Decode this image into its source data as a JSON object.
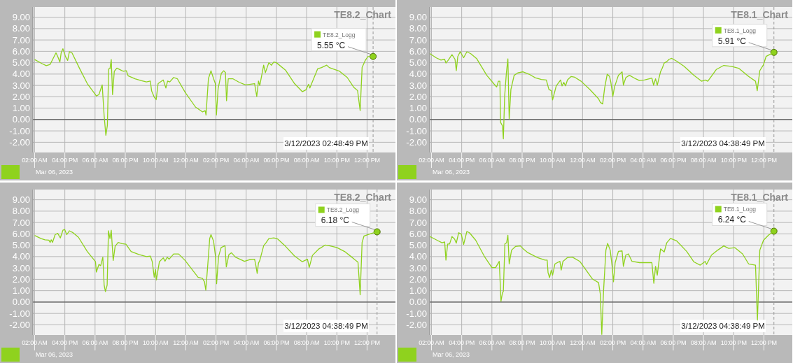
{
  "chart_data": [
    {
      "type": "line",
      "title": "TE8.2_Chart",
      "xlim": [
        "2023-03-06T01:12",
        "2023-03-13T00:30"
      ],
      "ylim": [
        -2.9,
        9.9
      ],
      "grid": true,
      "legend": "top right",
      "line_style": "solid",
      "marker": "none",
      "xticks": [
        {
          "value": "2023-03-06T02:00",
          "label": "02:00 AM"
        },
        {
          "value": "2023-03-06T16:00",
          "label": "04:00 PM"
        },
        {
          "value": "2023-03-07T06:00",
          "label": "06:00 AM"
        },
        {
          "value": "2023-03-07T20:00",
          "label": "08:00 PM"
        },
        {
          "value": "2023-03-08T10:00",
          "label": "10:00 AM"
        },
        {
          "value": "2023-03-09T00:00",
          "label": "12:00 AM"
        },
        {
          "value": "2023-03-09T14:00",
          "label": "02:00 PM"
        },
        {
          "value": "2023-03-10T04:00",
          "label": "04:00 AM"
        },
        {
          "value": "2023-03-10T18:00",
          "label": "06:00 PM"
        },
        {
          "value": "2023-03-11T08:00",
          "label": "08:00 AM"
        },
        {
          "value": "2023-03-11T22:00",
          "label": "10:00 PM"
        },
        {
          "value": "2023-03-12T12:00",
          "label": "12:00 PM"
        }
      ],
      "yticks": [
        {
          "value": -2,
          "label": "-2.00"
        },
        {
          "value": -1,
          "label": "-1.00"
        },
        {
          "value": 0,
          "label": "0.00"
        },
        {
          "value": 1,
          "label": "1.00"
        },
        {
          "value": 2,
          "label": "2.00"
        },
        {
          "value": 3,
          "label": "3.00"
        },
        {
          "value": 4,
          "label": "4.00"
        },
        {
          "value": 5,
          "label": "5.00"
        },
        {
          "value": 6,
          "label": "6.00"
        },
        {
          "value": 7,
          "label": "7.00"
        },
        {
          "value": 8,
          "label": "8.00"
        },
        {
          "value": 9,
          "label": "9.00"
        }
      ],
      "ref_lines": [
        {
          "axis": "y",
          "value": 0,
          "color": "#555555",
          "line_style": "solid"
        },
        {
          "axis": "x",
          "value": "2023-03-12T14:48",
          "color": "#999999",
          "line_style": "dashed"
        }
      ],
      "annotations": [
        "Mar 06, 2023",
        "3/12/2023 02:48:49 PM",
        {
          "text": "5.55 °C",
          "x": "2023-03-12T14:48",
          "y": 5.55
        }
      ],
      "series": [
        {
          "name": "TE8.2_Logg",
          "color": "#8fd21e",
          "x": [
            "2023-03-06T02:00",
            "2023-03-06T05:36",
            "2023-03-06T07:24",
            "2023-03-06T09:12",
            "2023-03-06T11:54",
            "2023-03-06T12:42",
            "2023-03-06T13:42",
            "2023-03-06T14:18",
            "2023-03-06T15:06",
            "2023-03-06T16:18",
            "2023-03-06T17:18",
            "2023-03-06T18:06",
            "2023-03-06T19:18",
            "2023-03-06T22:54",
            "2023-03-07T02:24",
            "2023-03-07T06:36",
            "2023-03-07T07:48",
            "2023-03-07T09:18",
            "2023-03-07T10:12",
            "2023-03-07T11:00",
            "2023-03-07T11:42",
            "2023-03-07T12:18",
            "2023-03-07T12:54",
            "2023-03-07T13:30",
            "2023-03-07T14:06",
            "2023-03-07T14:54",
            "2023-03-07T16:06",
            "2023-03-07T17:54",
            "2023-03-07T19:06",
            "2023-03-07T20:30",
            "2023-03-07T21:18",
            "2023-03-08T00:30",
            "2023-03-08T03:30",
            "2023-03-08T05:48",
            "2023-03-08T07:36",
            "2023-03-08T08:12",
            "2023-03-08T09:24",
            "2023-03-08T10:18",
            "2023-03-08T11:12",
            "2023-03-08T13:36",
            "2023-03-08T14:48",
            "2023-03-08T15:36",
            "2023-03-08T16:36",
            "2023-03-08T18:24",
            "2023-03-08T20:06",
            "2023-03-08T23:42",
            "2023-03-09T04:30",
            "2023-03-09T07:48",
            "2023-03-09T09:00",
            "2023-03-09T09:24",
            "2023-03-09T10:30",
            "2023-03-09T11:42",
            "2023-03-09T12:54",
            "2023-03-09T13:42",
            "2023-03-09T14:12",
            "2023-03-09T15:00",
            "2023-03-09T16:30",
            "2023-03-09T17:36",
            "2023-03-09T18:24",
            "2023-03-09T18:54",
            "2023-03-09T19:42",
            "2023-03-09T21:48",
            "2023-03-10T00:48",
            "2023-03-10T03:42",
            "2023-03-10T07:54",
            "2023-03-10T08:54",
            "2023-03-10T09:42",
            "2023-03-10T10:18",
            "2023-03-10T12:06",
            "2023-03-10T12:54",
            "2023-03-10T14:30",
            "2023-03-10T15:42",
            "2023-03-10T16:48",
            "2023-03-10T18:00",
            "2023-03-10T22:12",
            "2023-03-11T02:24",
            "2023-03-11T06:00",
            "2023-03-11T07:42",
            "2023-03-11T08:54",
            "2023-03-11T09:30",
            "2023-03-11T13:06",
            "2023-03-11T14:54",
            "2023-03-11T17:18",
            "2023-03-11T18:30",
            "2023-03-11T23:18",
            "2023-03-12T02:48",
            "2023-03-12T05:48",
            "2023-03-12T07:36",
            "2023-03-12T08:48",
            "2023-03-12T09:42",
            "2023-03-12T11:12",
            "2023-03-12T12:24",
            "2023-03-12T14:48"
          ],
          "values": [
            5.28,
            4.9,
            4.74,
            4.85,
            5.87,
            5.54,
            5.06,
            5.87,
            6.23,
            5.54,
            5.2,
            5.97,
            5.87,
            4.46,
            3.16,
            2.08,
            2.19,
            3.05,
            0.35,
            -1.39,
            -0.52,
            4.46,
            4.46,
            5.28,
            2.19,
            4.24,
            4.52,
            4.35,
            4.24,
            4.29,
            3.85,
            3.59,
            3.42,
            3.31,
            3.38,
            2.51,
            1.97,
            1.75,
            3.16,
            3.48,
            2.77,
            3.38,
            3.31,
            3.7,
            3.59,
            2.4,
            1.1,
            0.67,
            0.78,
            0.39,
            3.59,
            4.29,
            3.59,
            3.16,
            0.39,
            2.73,
            4.07,
            4.29,
            4.13,
            1.65,
            3.59,
            3.59,
            3.27,
            3.05,
            3.16,
            2.03,
            3.38,
            2.99,
            4.78,
            4.13,
            5.0,
            4.78,
            5.06,
            5.0,
            4.35,
            3.16,
            2.45,
            2.62,
            3.1,
            2.77,
            4.46,
            4.57,
            4.78,
            4.57,
            4.24,
            3.7,
            2.84,
            2.55,
            0.78,
            4.57,
            5.22,
            5.54,
            5.55
          ]
        }
      ]
    },
    {
      "type": "line",
      "title": "TE8.1_Chart",
      "xlim": [
        "2023-03-06T01:12",
        "2023-03-13T00:30"
      ],
      "ylim": [
        -2.9,
        9.9
      ],
      "grid": true,
      "legend": "top right",
      "line_style": "solid",
      "marker": "none",
      "xticks": [
        {
          "value": "2023-03-06T02:00",
          "label": "02:00 AM"
        },
        {
          "value": "2023-03-06T16:00",
          "label": "04:00 PM"
        },
        {
          "value": "2023-03-07T06:00",
          "label": "06:00 AM"
        },
        {
          "value": "2023-03-07T20:00",
          "label": "08:00 PM"
        },
        {
          "value": "2023-03-08T10:00",
          "label": "10:00 AM"
        },
        {
          "value": "2023-03-09T00:00",
          "label": "12:00 AM"
        },
        {
          "value": "2023-03-09T14:00",
          "label": "02:00 PM"
        },
        {
          "value": "2023-03-10T04:00",
          "label": "04:00 AM"
        },
        {
          "value": "2023-03-10T18:00",
          "label": "06:00 PM"
        },
        {
          "value": "2023-03-11T08:00",
          "label": "08:00 AM"
        },
        {
          "value": "2023-03-11T22:00",
          "label": "10:00 PM"
        },
        {
          "value": "2023-03-12T12:00",
          "label": "12:00 PM"
        }
      ],
      "yticks": [
        {
          "value": -2,
          "label": "-2.00"
        },
        {
          "value": -1,
          "label": "-1.00"
        },
        {
          "value": 0,
          "label": "0.00"
        },
        {
          "value": 1,
          "label": "1.00"
        },
        {
          "value": 2,
          "label": "2.00"
        },
        {
          "value": 3,
          "label": "3.00"
        },
        {
          "value": 4,
          "label": "4.00"
        },
        {
          "value": 5,
          "label": "5.00"
        },
        {
          "value": 6,
          "label": "6.00"
        },
        {
          "value": 7,
          "label": "7.00"
        },
        {
          "value": 8,
          "label": "8.00"
        },
        {
          "value": 9,
          "label": "9.00"
        }
      ],
      "ref_lines": [
        {
          "axis": "y",
          "value": 0,
          "color": "#555555",
          "line_style": "solid"
        },
        {
          "axis": "x",
          "value": "2023-03-12T16:38",
          "color": "#999999",
          "line_style": "dashed"
        }
      ],
      "annotations": [
        "Mar 06, 2023",
        "3/12/2023 04:38:49 PM",
        {
          "text": "5.91 °C",
          "x": "2023-03-12T16:38",
          "y": 5.91
        }
      ],
      "series": [
        {
          "name": "TE8.1_Logg",
          "color": "#8fd21e",
          "x": [
            "2023-03-06T01:12",
            "2023-03-06T04:06",
            "2023-03-06T06:24",
            "2023-03-06T08:06",
            "2023-03-06T08:42",
            "2023-03-06T09:48",
            "2023-03-06T11:30",
            "2023-03-06T12:54",
            "2023-03-06T13:30",
            "2023-03-06T14:12",
            "2023-03-06T15:18",
            "2023-03-06T16:54",
            "2023-03-06T18:24",
            "2023-03-06T20:12",
            "2023-03-06T23:00",
            "2023-03-07T03:36",
            "2023-03-07T07:42",
            "2023-03-07T08:12",
            "2023-03-07T09:00",
            "2023-03-07T09:42",
            "2023-03-07T10:00",
            "2023-03-07T10:54",
            "2023-03-07T11:18",
            "2023-03-07T11:54",
            "2023-03-07T12:42",
            "2023-03-07T13:24",
            "2023-03-07T14:00",
            "2023-03-07T14:48",
            "2023-03-07T16:18",
            "2023-03-07T18:00",
            "2023-03-07T20:18",
            "2023-03-07T23:12",
            "2023-03-08T02:00",
            "2023-03-08T04:54",
            "2023-03-08T07:12",
            "2023-03-08T08:24",
            "2023-03-08T09:30",
            "2023-03-08T10:06",
            "2023-03-08T11:48",
            "2023-03-08T13:48",
            "2023-03-08T14:30",
            "2023-03-08T15:18",
            "2023-03-08T16:06",
            "2023-03-08T17:00",
            "2023-03-08T18:42",
            "2023-03-08T20:24",
            "2023-03-08T23:18",
            "2023-03-09T03:18",
            "2023-03-09T07:24",
            "2023-03-09T08:12",
            "2023-03-09T09:18",
            "2023-03-09T10:12",
            "2023-03-09T11:24",
            "2023-03-09T12:30",
            "2023-03-09T13:06",
            "2023-03-09T14:00",
            "2023-03-09T14:48",
            "2023-03-09T16:36",
            "2023-03-09T18:18",
            "2023-03-09T18:54",
            "2023-03-09T20:00",
            "2023-03-09T21:42",
            "2023-03-10T00:36",
            "2023-03-10T02:18",
            "2023-03-10T04:36",
            "2023-03-10T06:54",
            "2023-03-10T08:06",
            "2023-03-10T08:54",
            "2023-03-10T09:48",
            "2023-03-10T10:36",
            "2023-03-10T12:06",
            "2023-03-10T12:54",
            "2023-03-10T13:48",
            "2023-03-10T15:00",
            "2023-03-10T16:06",
            "2023-03-10T17:18",
            "2023-03-10T19:36",
            "2023-03-10T23:00",
            "2023-03-11T03:36",
            "2023-03-11T07:06",
            "2023-03-11T08:48",
            "2023-03-11T10:00",
            "2023-03-11T14:00",
            "2023-03-11T17:24",
            "2023-03-11T20:54",
            "2023-03-12T00:18",
            "2023-03-12T04:54",
            "2023-03-12T08:06",
            "2023-03-12T08:54",
            "2023-03-12T10:06",
            "2023-03-12T11:48",
            "2023-03-12T13:00",
            "2023-03-12T16:38"
          ],
          "values": [
            5.81,
            5.44,
            5.23,
            5.3,
            4.97,
            5.23,
            5.71,
            5.3,
            4.3,
            5.55,
            5.96,
            5.44,
            5.96,
            5.79,
            5.34,
            3.89,
            2.96,
            2.86,
            3.37,
            3.37,
            -0.25,
            -0.56,
            -1.7,
            2.03,
            4.1,
            5.34,
            0.06,
            2.65,
            3.89,
            4.1,
            4.2,
            3.99,
            3.68,
            3.52,
            3.48,
            2.65,
            2.54,
            1.72,
            2.96,
            3.48,
            2.96,
            3.27,
            2.96,
            3.48,
            3.79,
            3.72,
            3.37,
            2.65,
            1.82,
            1.51,
            1.37,
            2.75,
            3.99,
            3.79,
            3.27,
            2.03,
            2.86,
            3.89,
            4.2,
            3.02,
            3.68,
            3.89,
            3.58,
            3.43,
            3.48,
            3.58,
            3.64,
            3.02,
            3.58,
            3.02,
            4.2,
            4.51,
            4.97,
            5.09,
            5.3,
            5.38,
            5.13,
            4.68,
            3.89,
            3.37,
            3.48,
            3.37,
            4.41,
            4.76,
            4.68,
            4.51,
            3.79,
            3.37,
            2.54,
            4.3,
            4.82,
            5.55,
            5.91
          ]
        }
      ]
    },
    {
      "type": "line",
      "title": "TE8.2_Chart",
      "xlim": [
        "2023-03-06T01:12",
        "2023-03-13T00:30"
      ],
      "ylim": [
        -2.9,
        9.9
      ],
      "grid": true,
      "legend": "top right",
      "line_style": "solid",
      "marker": "none",
      "xticks": [
        {
          "value": "2023-03-06T02:00",
          "label": "02:00 AM"
        },
        {
          "value": "2023-03-06T16:00",
          "label": "04:00 PM"
        },
        {
          "value": "2023-03-07T06:00",
          "label": "06:00 AM"
        },
        {
          "value": "2023-03-07T20:00",
          "label": "08:00 PM"
        },
        {
          "value": "2023-03-08T10:00",
          "label": "10:00 AM"
        },
        {
          "value": "2023-03-09T00:00",
          "label": "12:00 AM"
        },
        {
          "value": "2023-03-09T14:00",
          "label": "02:00 PM"
        },
        {
          "value": "2023-03-10T04:00",
          "label": "04:00 AM"
        },
        {
          "value": "2023-03-10T18:00",
          "label": "06:00 PM"
        },
        {
          "value": "2023-03-11T08:00",
          "label": "08:00 AM"
        },
        {
          "value": "2023-03-11T22:00",
          "label": "10:00 PM"
        },
        {
          "value": "2023-03-12T12:00",
          "label": "12:00 PM"
        }
      ],
      "yticks": [
        {
          "value": -2,
          "label": "-2.00"
        },
        {
          "value": -1,
          "label": "-1.00"
        },
        {
          "value": 0,
          "label": "0.00"
        },
        {
          "value": 1,
          "label": "1.00"
        },
        {
          "value": 2,
          "label": "2.00"
        },
        {
          "value": 3,
          "label": "3.00"
        },
        {
          "value": 4,
          "label": "4.00"
        },
        {
          "value": 5,
          "label": "5.00"
        },
        {
          "value": 6,
          "label": "6.00"
        },
        {
          "value": 7,
          "label": "7.00"
        },
        {
          "value": 8,
          "label": "8.00"
        },
        {
          "value": 9,
          "label": "9.00"
        }
      ],
      "ref_lines": [
        {
          "axis": "y",
          "value": 0,
          "color": "#555555",
          "line_style": "solid"
        },
        {
          "axis": "x",
          "value": "2023-03-12T16:38",
          "color": "#999999",
          "line_style": "dashed"
        }
      ],
      "annotations": [
        "Mar 06, 2023",
        "3/12/2023 04:38:49 PM",
        {
          "text": "6.18 °C",
          "x": "2023-03-12T16:38",
          "y": 6.18
        }
      ],
      "series": [
        {
          "name": "TE8.2_Logg",
          "color": "#8fd21e",
          "x": [
            "2023-03-06T02:00",
            "2023-03-06T05:00",
            "2023-03-06T06:48",
            "2023-03-06T08:36",
            "2023-03-06T09:12",
            "2023-03-06T09:42",
            "2023-03-06T10:18",
            "2023-03-06T11:30",
            "2023-03-06T12:42",
            "2023-03-06T13:54",
            "2023-03-06T15:06",
            "2023-03-06T15:54",
            "2023-03-06T16:54",
            "2023-03-06T18:06",
            "2023-03-06T19:54",
            "2023-03-06T22:18",
            "2023-03-07T02:24",
            "2023-03-07T06:12",
            "2023-03-07T06:36",
            "2023-03-07T07:48",
            "2023-03-07T08:36",
            "2023-03-07T09:36",
            "2023-03-07T10:12",
            "2023-03-07T10:48",
            "2023-03-07T11:36",
            "2023-03-07T12:12",
            "2023-03-07T12:54",
            "2023-03-07T13:30",
            "2023-03-07T14:24",
            "2023-03-07T15:18",
            "2023-03-07T16:42",
            "2023-03-07T18:30",
            "2023-03-07T20:18",
            "2023-03-07T22:42",
            "2023-03-08T02:18",
            "2023-03-08T05:48",
            "2023-03-08T07:36",
            "2023-03-08T08:30",
            "2023-03-08T09:24",
            "2023-03-08T10:00",
            "2023-03-08T10:24",
            "2023-03-08T11:48",
            "2023-03-08T13:36",
            "2023-03-08T14:24",
            "2023-03-08T15:24",
            "2023-03-08T16:18",
            "2023-03-08T18:24",
            "2023-03-08T20:42",
            "2023-03-08T23:42",
            "2023-03-09T05:42",
            "2023-03-09T07:48",
            "2023-03-09T08:42",
            "2023-03-09T09:18",
            "2023-03-09T10:30",
            "2023-03-09T11:06",
            "2023-03-09T11:42",
            "2023-03-09T12:54",
            "2023-03-09T13:48",
            "2023-03-09T14:18",
            "2023-03-09T15:12",
            "2023-03-09T16:24",
            "2023-03-09T18:12",
            "2023-03-09T18:48",
            "2023-03-09T20:00",
            "2023-03-09T21:12",
            "2023-03-09T23:00",
            "2023-03-10T03:12",
            "2023-03-10T05:30",
            "2023-03-10T07:54",
            "2023-03-10T08:30",
            "2023-03-10T09:06",
            "2023-03-10T09:42",
            "2023-03-10T10:18",
            "2023-03-10T12:06",
            "2023-03-10T13:18",
            "2023-03-10T14:30",
            "2023-03-10T16:48",
            "2023-03-10T18:36",
            "2023-03-10T22:12",
            "2023-03-11T02:24",
            "2023-03-11T06:00",
            "2023-03-11T08:24",
            "2023-03-11T09:12",
            "2023-03-11T10:42",
            "2023-03-11T13:42",
            "2023-03-11T16:42",
            "2023-03-11T18:30",
            "2023-03-11T22:00",
            "2023-03-12T01:36",
            "2023-03-12T04:36",
            "2023-03-12T07:48",
            "2023-03-12T08:48",
            "2023-03-12T09:42",
            "2023-03-12T10:36",
            "2023-03-12T14:12",
            "2023-03-12T16:38"
          ],
          "values": [
            5.86,
            5.59,
            5.48,
            5.45,
            5.25,
            5.48,
            5.25,
            5.93,
            6.05,
            5.64,
            6.32,
            6.39,
            5.93,
            6.27,
            6.09,
            5.7,
            4.45,
            3.55,
            2.64,
            3.32,
            3.2,
            3.95,
            1.5,
            0.93,
            1.5,
            6.27,
            5.59,
            6.32,
            3.66,
            4.91,
            5.25,
            5.14,
            5.09,
            4.45,
            4.18,
            4.0,
            4.05,
            3.55,
            2.18,
            2.86,
            1.95,
            3.55,
            3.89,
            3.59,
            3.95,
            3.77,
            4.23,
            4.23,
            3.66,
            2.18,
            2.07,
            1.77,
            1.05,
            4.0,
            5.59,
            5.93,
            5.36,
            4.0,
            1.61,
            4.0,
            4.8,
            4.95,
            3.09,
            4.18,
            4.34,
            3.95,
            3.59,
            3.73,
            3.77,
            3.2,
            2.52,
            3.43,
            3.66,
            4.95,
            5.25,
            5.59,
            5.64,
            5.55,
            4.91,
            4.05,
            3.55,
            3.77,
            3.05,
            4.11,
            4.68,
            5.02,
            4.95,
            4.8,
            4.45,
            4.0,
            3.5,
            0.64,
            5.25,
            5.82,
            6.05,
            6.18
          ]
        }
      ]
    },
    {
      "type": "line",
      "title": "TE8.1_Chart",
      "xlim": [
        "2023-03-06T01:12",
        "2023-03-13T00:30"
      ],
      "ylim": [
        -2.9,
        9.9
      ],
      "grid": true,
      "legend": "top right",
      "line_style": "solid",
      "marker": "none",
      "xticks": [
        {
          "value": "2023-03-06T02:00",
          "label": "02:00 AM"
        },
        {
          "value": "2023-03-06T16:00",
          "label": "04:00 PM"
        },
        {
          "value": "2023-03-07T06:00",
          "label": "06:00 AM"
        },
        {
          "value": "2023-03-07T20:00",
          "label": "08:00 PM"
        },
        {
          "value": "2023-03-08T10:00",
          "label": "10:00 AM"
        },
        {
          "value": "2023-03-09T00:00",
          "label": "12:00 AM"
        },
        {
          "value": "2023-03-09T14:00",
          "label": "02:00 PM"
        },
        {
          "value": "2023-03-10T04:00",
          "label": "04:00 AM"
        },
        {
          "value": "2023-03-10T18:00",
          "label": "06:00 PM"
        },
        {
          "value": "2023-03-11T08:00",
          "label": "08:00 AM"
        },
        {
          "value": "2023-03-11T22:00",
          "label": "10:00 PM"
        },
        {
          "value": "2023-03-12T12:00",
          "label": "12:00 PM"
        }
      ],
      "yticks": [
        {
          "value": -2,
          "label": "-2.00"
        },
        {
          "value": -1,
          "label": "-1.00"
        },
        {
          "value": 0,
          "label": "0.00"
        },
        {
          "value": 1,
          "label": "1.00"
        },
        {
          "value": 2,
          "label": "2.00"
        },
        {
          "value": 3,
          "label": "3.00"
        },
        {
          "value": 4,
          "label": "4.00"
        },
        {
          "value": 5,
          "label": "5.00"
        },
        {
          "value": 6,
          "label": "6.00"
        },
        {
          "value": 7,
          "label": "7.00"
        },
        {
          "value": 8,
          "label": "8.00"
        },
        {
          "value": 9,
          "label": "9.00"
        }
      ],
      "ref_lines": [
        {
          "axis": "y",
          "value": 0,
          "color": "#555555",
          "line_style": "solid"
        },
        {
          "axis": "x",
          "value": "2023-03-12T16:38",
          "color": "#999999",
          "line_style": "dashed"
        }
      ],
      "annotations": [
        "Mar 06, 2023",
        "3/12/2023 04:38:49 PM",
        {
          "text": "6.24 °C",
          "x": "2023-03-12T16:38",
          "y": 6.24
        }
      ],
      "series": [
        {
          "name": "TE8.1_Logg",
          "color": "#8fd21e",
          "x": [
            "2023-03-06T01:12",
            "2023-03-06T04:36",
            "2023-03-06T06:54",
            "2023-03-06T08:06",
            "2023-03-06T08:42",
            "2023-03-06T09:30",
            "2023-03-06T10:24",
            "2023-03-06T11:30",
            "2023-03-06T12:42",
            "2023-03-06T13:30",
            "2023-03-06T14:36",
            "2023-03-06T15:48",
            "2023-03-06T16:54",
            "2023-03-06T18:24",
            "2023-03-06T19:36",
            "2023-03-06T22:30",
            "2023-03-07T02:30",
            "2023-03-07T06:00",
            "2023-03-07T07:42",
            "2023-03-07T09:24",
            "2023-03-07T10:12",
            "2023-03-07T10:54",
            "2023-03-07T11:18",
            "2023-03-07T12:00",
            "2023-03-07T12:48",
            "2023-03-07T13:24",
            "2023-03-07T14:00",
            "2023-03-07T15:06",
            "2023-03-07T16:54",
            "2023-03-07T19:12",
            "2023-03-07T20:18",
            "2023-03-07T22:36",
            "2023-03-08T03:12",
            "2023-03-08T06:36",
            "2023-03-08T07:36",
            "2023-03-08T08:00",
            "2023-03-08T08:42",
            "2023-03-08T09:30",
            "2023-03-08T10:06",
            "2023-03-08T11:12",
            "2023-03-08T13:30",
            "2023-03-08T14:06",
            "2023-03-08T14:54",
            "2023-03-08T17:00",
            "2023-03-08T19:18",
            "2023-03-08T22:42",
            "2023-03-09T04:30",
            "2023-03-09T07:24",
            "2023-03-09T08:12",
            "2023-03-09T08:54",
            "2023-03-09T09:42",
            "2023-03-09T10:48",
            "2023-03-09T11:36",
            "2023-03-09T12:48",
            "2023-03-09T13:42",
            "2023-03-09T14:18",
            "2023-03-09T15:06",
            "2023-03-09T16:36",
            "2023-03-09T18:18",
            "2023-03-09T18:54",
            "2023-03-09T20:00",
            "2023-03-09T21:12",
            "2023-03-09T22:54",
            "2023-03-10T02:24",
            "2023-03-10T07:00",
            "2023-03-10T08:06",
            "2023-03-10T09:00",
            "2023-03-10T09:48",
            "2023-03-10T10:36",
            "2023-03-10T12:06",
            "2023-03-10T13:48",
            "2023-03-10T15:00",
            "2023-03-10T16:42",
            "2023-03-10T19:36",
            "2023-03-11T00:12",
            "2023-03-11T03:36",
            "2023-03-11T06:30",
            "2023-03-11T08:48",
            "2023-03-11T09:24",
            "2023-03-11T11:42",
            "2023-03-11T14:36",
            "2023-03-11T17:24",
            "2023-03-11T19:42",
            "2023-03-11T22:36",
            "2023-03-12T02:06",
            "2023-03-12T04:54",
            "2023-03-12T08:06",
            "2023-03-12T09:00",
            "2023-03-12T10:06",
            "2023-03-12T11:48",
            "2023-03-12T14:06",
            "2023-03-12T16:38"
          ],
          "values": [
            5.77,
            5.44,
            5.22,
            5.29,
            3.69,
            5.11,
            5.11,
            5.77,
            5.55,
            5.18,
            6.1,
            5.99,
            5.07,
            6.21,
            6.1,
            5.44,
            4.02,
            3.03,
            3.03,
            3.58,
            0.07,
            0.83,
            0.94,
            5.11,
            5.22,
            5.88,
            3.36,
            4.57,
            4.89,
            4.94,
            4.72,
            4.35,
            3.91,
            3.69,
            3.69,
            2.59,
            2.15,
            2.81,
            2.37,
            3.36,
            3.58,
            2.81,
            3.58,
            3.91,
            3.95,
            3.58,
            2.04,
            1.71,
            0.72,
            -2.85,
            0.94,
            4.57,
            5.16,
            4.57,
            3.14,
            1.78,
            3.47,
            4.46,
            4.5,
            3.14,
            4.13,
            4.24,
            3.58,
            3.47,
            3.47,
            3.47,
            1.65,
            3.14,
            2.37,
            4.68,
            4.41,
            5.22,
            5.6,
            5.38,
            4.46,
            3.53,
            3.25,
            3.58,
            3.31,
            4.13,
            4.57,
            4.94,
            4.72,
            4.78,
            4.24,
            3.36,
            3.25,
            -1.58,
            4.57,
            5.44,
            5.88,
            6.24
          ]
        }
      ]
    }
  ]
}
